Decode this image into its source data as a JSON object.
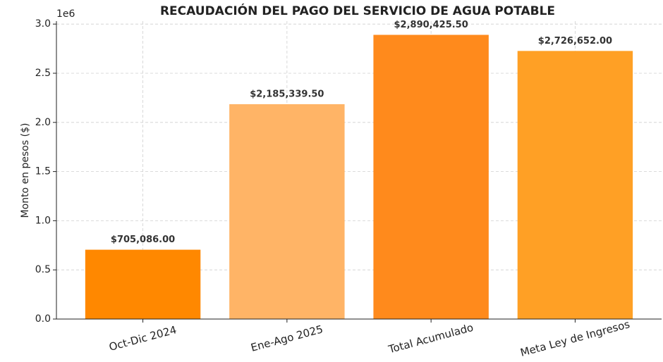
{
  "chart_data": {
    "type": "bar",
    "title": "RECAUDACIÓN DEL PAGO DEL SERVICIO DE AGUA POTABLE",
    "y_label": "Monto en pesos ($)",
    "y_offset_label": "1e6",
    "categories": [
      "Oct-Dic 2024",
      "Ene-Ago 2025",
      "Total Acumulado",
      "Meta Ley de Ingresos"
    ],
    "values": [
      705086.0,
      2185339.5,
      2890425.5,
      2726652.0
    ],
    "value_labels": [
      "$705,086.00",
      "$2,185,339.50",
      "$2,890,425.50",
      "$2,726,652.00"
    ],
    "colors": [
      "#ff8800",
      "#ffb466",
      "#ff8a1c",
      "#ffa025"
    ],
    "ylim": [
      0,
      3030000
    ],
    "yticks": [
      {
        "value": 0,
        "label": "0.0"
      },
      {
        "value": 500000,
        "label": "0.5"
      },
      {
        "value": 1000000,
        "label": "1.0"
      },
      {
        "value": 1500000,
        "label": "1.5"
      },
      {
        "value": 2000000,
        "label": "2.0"
      },
      {
        "value": 2500000,
        "label": "2.5"
      },
      {
        "value": 3000000,
        "label": "3.0"
      }
    ],
    "grid": true
  }
}
